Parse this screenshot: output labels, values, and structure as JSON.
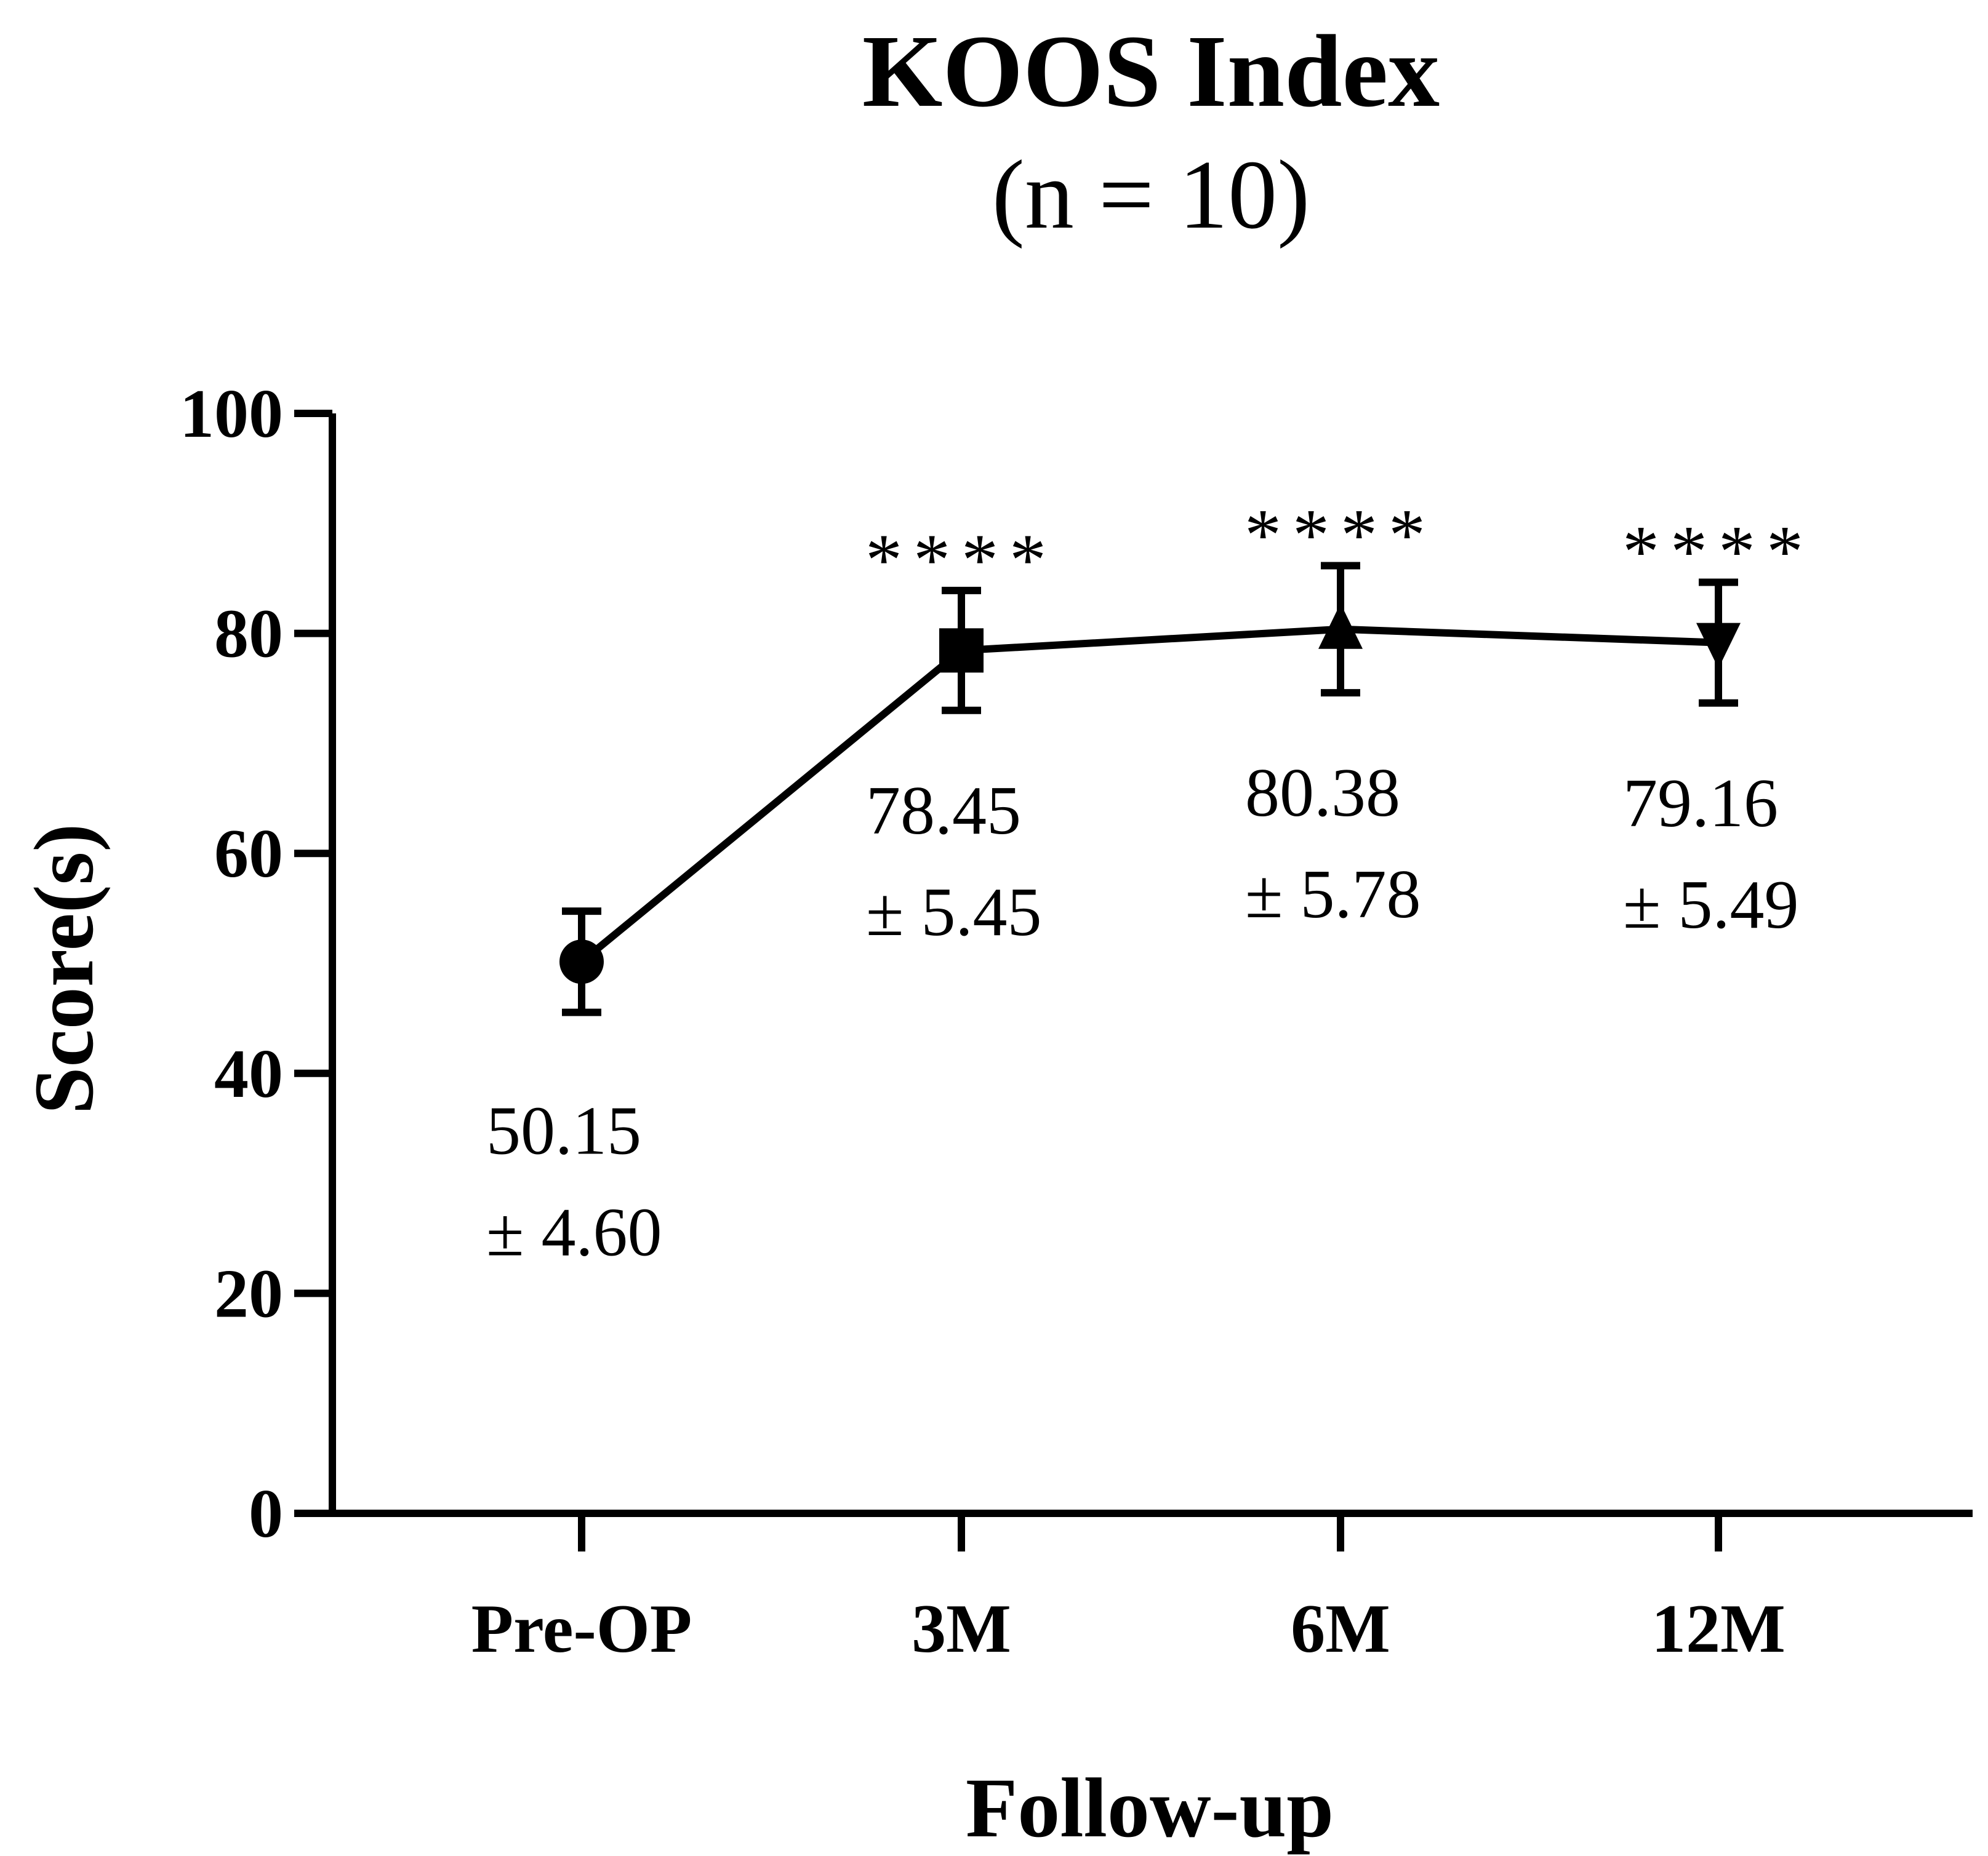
{
  "chart_data": {
    "type": "line",
    "title": "KOOS Index",
    "subtitle": "(n = 10)",
    "xlabel": "Follow-up",
    "ylabel": "Score(s)",
    "ylim": [
      0,
      100
    ],
    "yticks": [
      0,
      20,
      40,
      60,
      80,
      100
    ],
    "ytick_labels": [
      "0",
      "20",
      "40",
      "60",
      "80",
      "100"
    ],
    "categories": [
      "Pre-OP",
      "3M",
      "6M",
      "12M"
    ],
    "series": [
      {
        "name": "KOOS Index",
        "values": [
          50.15,
          78.45,
          80.38,
          79.16
        ],
        "errors": [
          4.6,
          5.45,
          5.78,
          5.49
        ],
        "markers": [
          "circle",
          "square",
          "triangle-up",
          "triangle-down"
        ]
      }
    ],
    "value_labels": [
      "50.15",
      "78.45",
      "80.38",
      "79.16"
    ],
    "error_labels": [
      "± 4.60",
      "± 5.45",
      "± 5.78",
      "± 5.49"
    ],
    "significance": [
      "",
      "****",
      "****",
      "****"
    ],
    "grid": false,
    "legend": "none"
  }
}
